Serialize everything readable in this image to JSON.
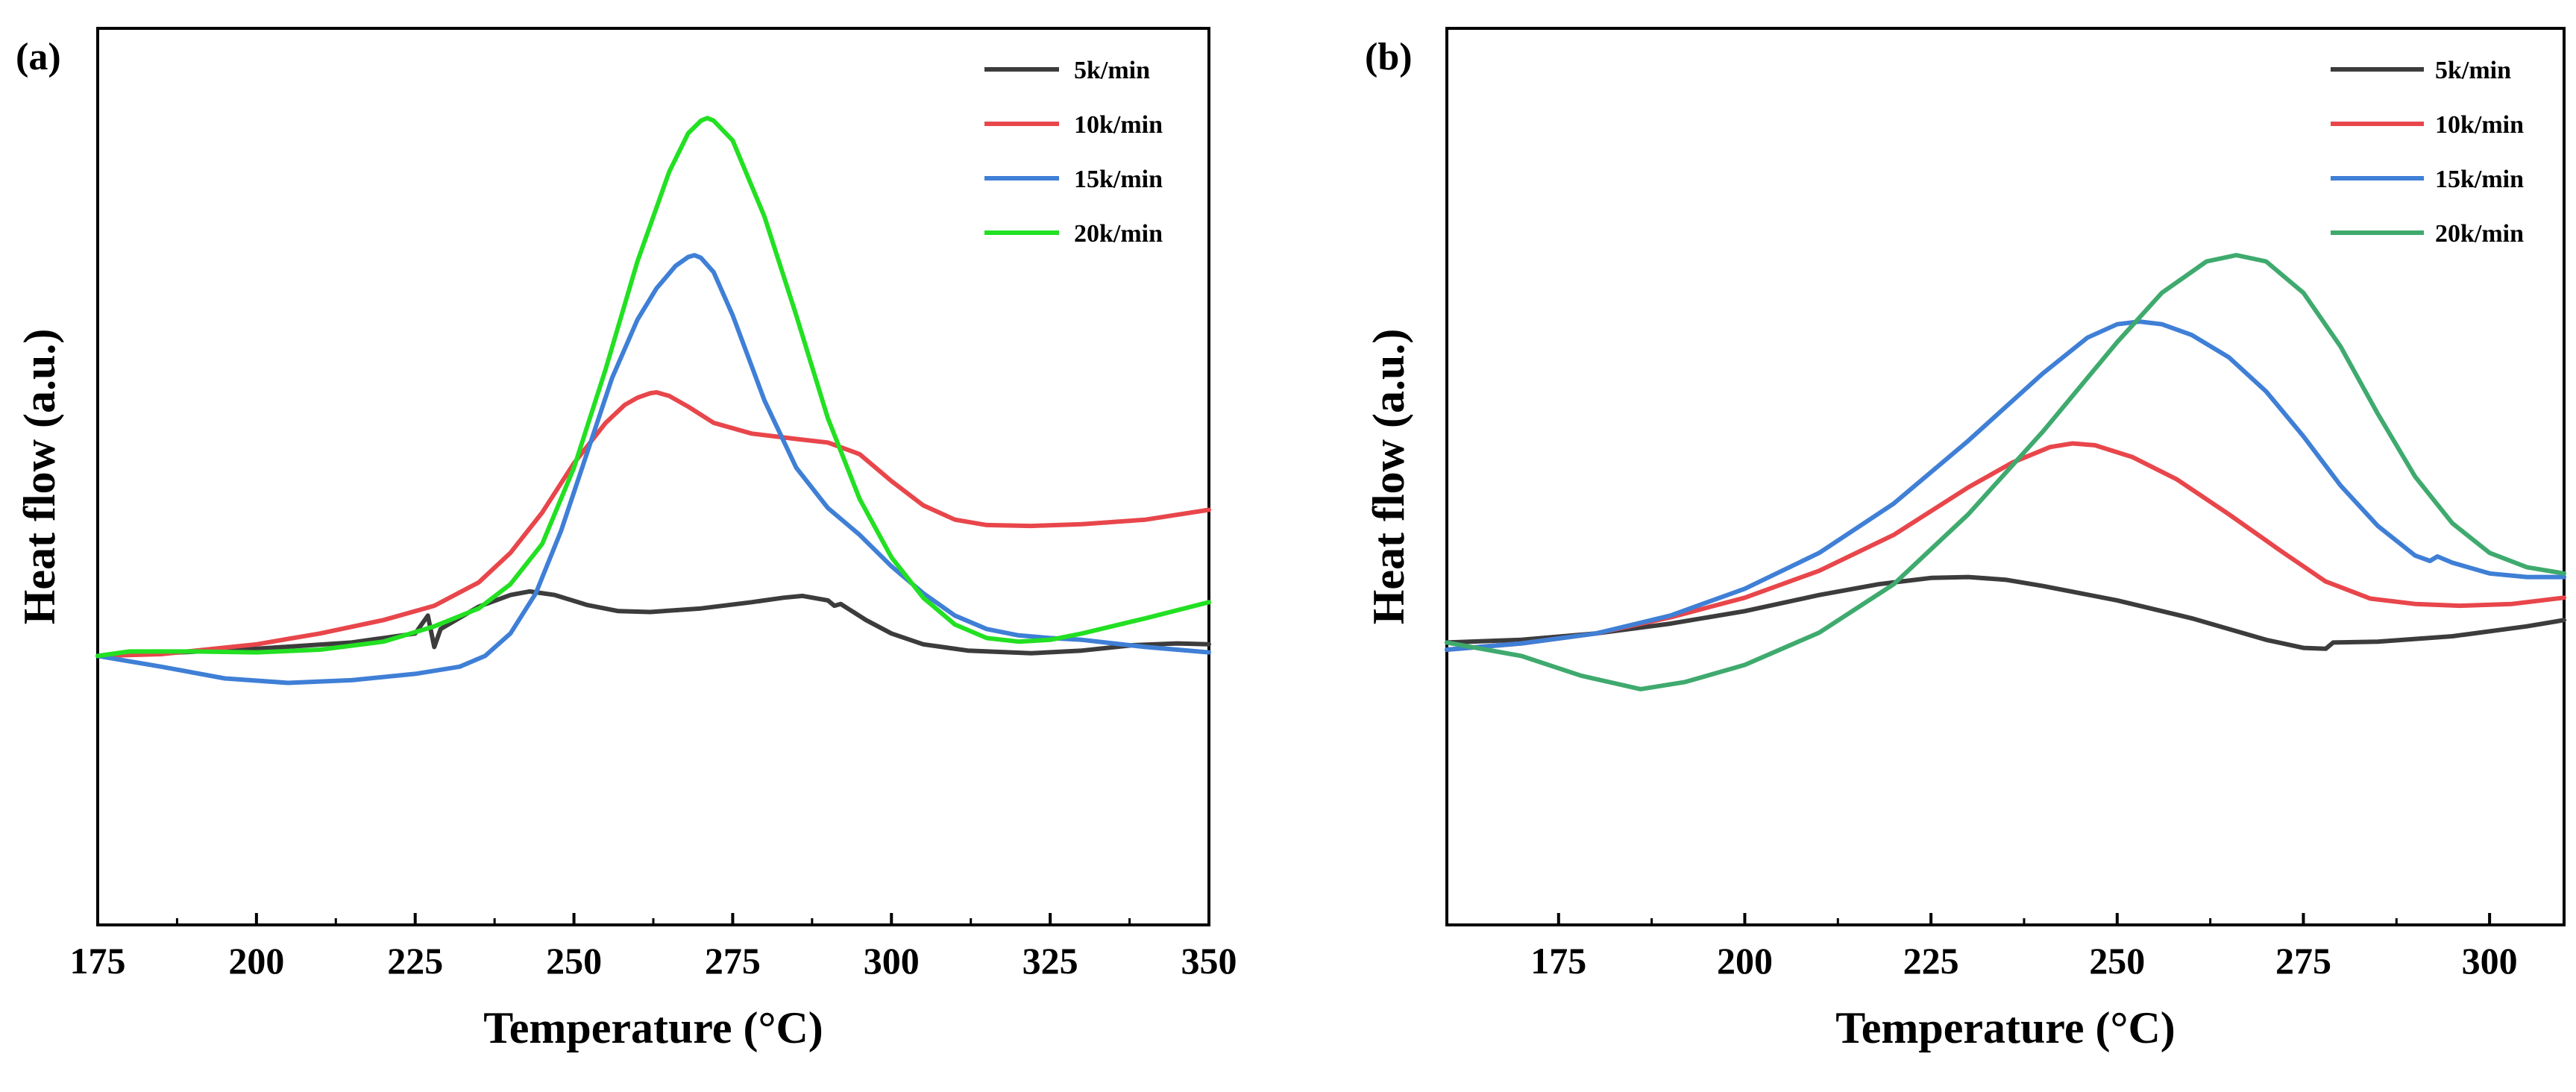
{
  "chart_data": [
    {
      "type": "line",
      "panel_label": "(a)",
      "xlabel": "Temperature (°C)",
      "ylabel": "Heat flow (a.u.)",
      "xlim": [
        175,
        350
      ],
      "ylim": [
        0,
        100
      ],
      "xticks": [
        175,
        200,
        225,
        250,
        275,
        300,
        325,
        350
      ],
      "y_ticks_shown": false,
      "grid": false,
      "legend_position": "top-right",
      "series": [
        {
          "name": "5k/min",
          "color": "#3c3c3c",
          "x": [
            175,
            185,
            200,
            215,
            225,
            227,
            228,
            229,
            235,
            240,
            243,
            247,
            252,
            257,
            262,
            270,
            278,
            283,
            286,
            290,
            291,
            292,
            296,
            300,
            305,
            312,
            322,
            330,
            338,
            345,
            350
          ],
          "y": [
            30.0,
            30.3,
            30.8,
            31.5,
            32.5,
            34.5,
            31.0,
            33.0,
            35.5,
            36.8,
            37.2,
            36.8,
            35.7,
            35.0,
            34.9,
            35.3,
            36.0,
            36.5,
            36.7,
            36.2,
            35.6,
            35.8,
            34.0,
            32.5,
            31.3,
            30.6,
            30.3,
            30.6,
            31.2,
            31.4,
            31.3
          ]
        },
        {
          "name": "10k/min",
          "color": "#e8464b",
          "x": [
            175,
            185,
            200,
            210,
            220,
            228,
            235,
            240,
            245,
            250,
            255,
            258,
            260,
            262,
            263,
            265,
            268,
            272,
            278,
            285,
            290,
            295,
            300,
            305,
            310,
            315,
            322,
            330,
            340,
            350
          ],
          "y": [
            30.0,
            30.2,
            31.3,
            32.5,
            34.0,
            35.6,
            38.2,
            41.5,
            46.0,
            51.5,
            56.0,
            58.0,
            58.8,
            59.3,
            59.4,
            59.0,
            57.8,
            56.0,
            54.8,
            54.2,
            53.8,
            52.5,
            49.5,
            46.8,
            45.2,
            44.6,
            44.5,
            44.7,
            45.2,
            46.3
          ]
        },
        {
          "name": "15k/min",
          "color": "#3f7fd6",
          "x": [
            175,
            185,
            195,
            205,
            215,
            225,
            232,
            236,
            240,
            244,
            248,
            252,
            256,
            260,
            263,
            266,
            268,
            269,
            270,
            272,
            275,
            280,
            285,
            290,
            295,
            300,
            305,
            310,
            315,
            320,
            325,
            330,
            340,
            350
          ],
          "y": [
            30.0,
            28.8,
            27.5,
            27.0,
            27.3,
            28.0,
            28.8,
            30.0,
            32.5,
            37.0,
            44.0,
            52.5,
            61.0,
            67.5,
            71.0,
            73.5,
            74.5,
            74.7,
            74.4,
            72.8,
            68.0,
            58.5,
            51.0,
            46.5,
            43.5,
            40.0,
            37.0,
            34.5,
            33.0,
            32.3,
            32.0,
            31.8,
            31.0,
            30.4
          ]
        },
        {
          "name": "20k/min",
          "color": "#22e022",
          "x": [
            175,
            180,
            190,
            200,
            210,
            220,
            228,
            235,
            240,
            245,
            250,
            255,
            260,
            265,
            268,
            270,
            271,
            272,
            275,
            280,
            285,
            290,
            295,
            300,
            305,
            310,
            315,
            320,
            325,
            330,
            340,
            350
          ],
          "y": [
            30.0,
            30.5,
            30.5,
            30.4,
            30.7,
            31.6,
            33.3,
            35.3,
            38.0,
            42.5,
            51.0,
            62.0,
            74.0,
            84.0,
            88.3,
            89.7,
            90.0,
            89.7,
            87.5,
            79.0,
            68.0,
            56.5,
            47.5,
            41.0,
            36.5,
            33.5,
            32.0,
            31.6,
            31.8,
            32.5,
            34.2,
            36.0
          ]
        }
      ]
    },
    {
      "type": "line",
      "panel_label": "(b)",
      "xlabel": "Temperature (°C)",
      "ylabel": "Heat flow (a.u.)",
      "xlim": [
        160,
        310
      ],
      "ylim": [
        0,
        100
      ],
      "xticks": [
        175,
        200,
        225,
        250,
        275,
        300
      ],
      "y_ticks_shown": false,
      "grid": false,
      "legend_position": "top-right",
      "series": [
        {
          "name": "5k/min",
          "color": "#3c3c3c",
          "x": [
            160,
            170,
            180,
            190,
            200,
            210,
            218,
            225,
            230,
            235,
            240,
            250,
            260,
            270,
            275,
            278,
            279,
            285,
            295,
            305,
            310
          ],
          "y": [
            31.5,
            31.8,
            32.5,
            33.6,
            35.0,
            36.8,
            38.0,
            38.7,
            38.8,
            38.5,
            37.8,
            36.2,
            34.2,
            31.8,
            30.9,
            30.8,
            31.5,
            31.6,
            32.2,
            33.3,
            34.0
          ]
        },
        {
          "name": "10k/min",
          "color": "#e8464b",
          "x": [
            160,
            170,
            180,
            190,
            200,
            210,
            220,
            230,
            236,
            241,
            244,
            247,
            252,
            258,
            265,
            272,
            278,
            284,
            290,
            296,
            303,
            310
          ],
          "y": [
            30.7,
            31.4,
            32.5,
            34.3,
            36.5,
            39.5,
            43.5,
            48.8,
            51.6,
            53.3,
            53.7,
            53.5,
            52.2,
            49.7,
            45.8,
            41.7,
            38.3,
            36.4,
            35.8,
            35.6,
            35.8,
            36.5
          ]
        },
        {
          "name": "15k/min",
          "color": "#3f7fd6",
          "x": [
            160,
            170,
            180,
            190,
            200,
            210,
            220,
            230,
            240,
            246,
            250,
            253,
            256,
            260,
            265,
            270,
            275,
            280,
            285,
            290,
            292,
            293,
            295,
            300,
            305,
            310
          ],
          "y": [
            30.7,
            31.4,
            32.5,
            34.5,
            37.5,
            41.5,
            47.0,
            54.0,
            61.5,
            65.5,
            67.0,
            67.3,
            67.0,
            65.8,
            63.3,
            59.5,
            54.5,
            49.0,
            44.5,
            41.2,
            40.6,
            41.1,
            40.4,
            39.2,
            38.8,
            38.8
          ]
        },
        {
          "name": "20k/min",
          "color": "#3faa6e",
          "x": [
            160,
            170,
            178,
            186,
            192,
            200,
            210,
            220,
            230,
            240,
            250,
            256,
            262,
            266,
            270,
            275,
            280,
            285,
            290,
            295,
            300,
            305,
            310
          ],
          "y": [
            31.5,
            30.0,
            27.8,
            26.3,
            27.1,
            29.0,
            32.6,
            38.0,
            45.8,
            55.0,
            65.0,
            70.5,
            74.0,
            74.7,
            74.0,
            70.5,
            64.5,
            57.0,
            50.0,
            44.8,
            41.5,
            39.9,
            39.2
          ]
        }
      ]
    }
  ]
}
